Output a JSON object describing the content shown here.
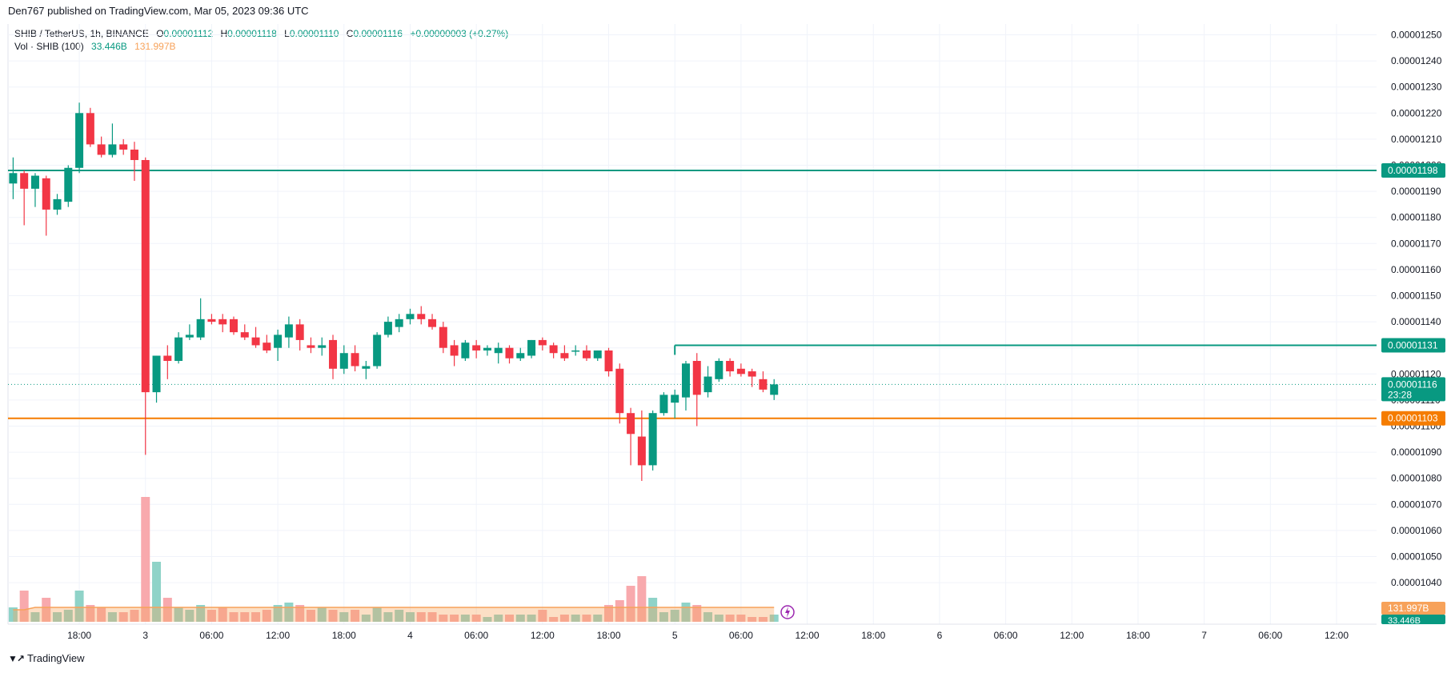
{
  "header": {
    "publisher_line": "Den767 published on TradingView.com, Mar 05, 2023 09:36 UTC"
  },
  "legend": {
    "symbol": "SHIB / TetherUS, 1h, BINANCE",
    "o_label": "O",
    "o_value": "0.00001112",
    "h_label": "H",
    "h_value": "0.00001118",
    "l_label": "L",
    "l_value": "0.00001110",
    "c_label": "C",
    "c_value": "0.00001116",
    "change": "+0.00000003 (+0.27%)",
    "vol_label": "Vol · SHIB (100)",
    "vol_value_1": "33.446B",
    "vol_value_2": "131.997B"
  },
  "footer": {
    "brand": "TradingView"
  },
  "colors": {
    "up": "#089981",
    "down": "#f23645",
    "vol_up": "#8fd3c8",
    "vol_down": "#f8a9ad",
    "vol_ma": "#f7a25a",
    "line_orange": "#f57c00",
    "line_green": "#089981",
    "grid": "#f0f3fa"
  },
  "chart_data": {
    "type": "candlestick",
    "ylim": [
      1.035e-05,
      1.25e-05
    ],
    "y_ticks": [
      "0.00001250",
      "0.00001240",
      "0.00001230",
      "0.00001220",
      "0.00001210",
      "0.00001200",
      "0.00001190",
      "0.00001180",
      "0.00001170",
      "0.00001160",
      "0.00001150",
      "0.00001140",
      "0.00001130",
      "0.00001120",
      "0.00001110",
      "0.00001100",
      "0.00001090",
      "0.00001080",
      "0.00001070",
      "0.00001060",
      "0.00001050",
      "0.00001040"
    ],
    "x_ticks": [
      {
        "idx": 6,
        "label": "18:00"
      },
      {
        "idx": 12,
        "label": "3"
      },
      {
        "idx": 18,
        "label": "06:00"
      },
      {
        "idx": 24,
        "label": "12:00"
      },
      {
        "idx": 30,
        "label": "18:00"
      },
      {
        "idx": 36,
        "label": "4"
      },
      {
        "idx": 42,
        "label": "06:00"
      },
      {
        "idx": 48,
        "label": "12:00"
      },
      {
        "idx": 54,
        "label": "18:00"
      },
      {
        "idx": 60,
        "label": "5"
      },
      {
        "idx": 66,
        "label": "06:00"
      },
      {
        "idx": 72,
        "label": "12:00"
      },
      {
        "idx": 78,
        "label": "18:00"
      },
      {
        "idx": 84,
        "label": "6"
      },
      {
        "idx": 90,
        "label": "06:00"
      },
      {
        "idx": 96,
        "label": "12:00"
      },
      {
        "idx": 102,
        "label": "18:00"
      },
      {
        "idx": 108,
        "label": "7"
      },
      {
        "idx": 114,
        "label": "06:00"
      },
      {
        "idx": 120,
        "label": "12:00"
      }
    ],
    "candles": [
      [
        1.193e-05,
        1.203e-05,
        1.187e-05,
        1.197e-05
      ],
      [
        1.197e-05,
        1.198e-05,
        1.177e-05,
        1.191e-05
      ],
      [
        1.191e-05,
        1.197e-05,
        1.184e-05,
        1.196e-05
      ],
      [
        1.195e-05,
        1.196e-05,
        1.173e-05,
        1.183e-05
      ],
      [
        1.183e-05,
        1.189e-05,
        1.181e-05,
        1.187e-05
      ],
      [
        1.186e-05,
        1.2e-05,
        1.184e-05,
        1.199e-05
      ],
      [
        1.199e-05,
        1.224e-05,
        1.197e-05,
        1.22e-05
      ],
      [
        1.22e-05,
        1.222e-05,
        1.207e-05,
        1.208e-05
      ],
      [
        1.208e-05,
        1.211e-05,
        1.203e-05,
        1.204e-05
      ],
      [
        1.204e-05,
        1.216e-05,
        1.203e-05,
        1.208e-05
      ],
      [
        1.208e-05,
        1.21e-05,
        1.204e-05,
        1.206e-05
      ],
      [
        1.206e-05,
        1.209e-05,
        1.194e-05,
        1.202e-05
      ],
      [
        1.202e-05,
        1.203e-05,
        1.089e-05,
        1.113e-05
      ],
      [
        1.113e-05,
        1.127e-05,
        1.109e-05,
        1.127e-05
      ],
      [
        1.127e-05,
        1.131e-05,
        1.118e-05,
        1.125e-05
      ],
      [
        1.125e-05,
        1.136e-05,
        1.124e-05,
        1.134e-05
      ],
      [
        1.134e-05,
        1.139e-05,
        1.133e-05,
        1.135e-05
      ],
      [
        1.134e-05,
        1.149e-05,
        1.133e-05,
        1.141e-05
      ],
      [
        1.141e-05,
        1.143e-05,
        1.139e-05,
        1.14e-05
      ],
      [
        1.141e-05,
        1.143e-05,
        1.136e-05,
        1.139e-05
      ],
      [
        1.141e-05,
        1.142e-05,
        1.135e-05,
        1.136e-05
      ],
      [
        1.136e-05,
        1.139e-05,
        1.133e-05,
        1.134e-05
      ],
      [
        1.134e-05,
        1.138e-05,
        1.13e-05,
        1.131e-05
      ],
      [
        1.132e-05,
        1.135e-05,
        1.128e-05,
        1.129e-05
      ],
      [
        1.13e-05,
        1.137e-05,
        1.125e-05,
        1.135e-05
      ],
      [
        1.134e-05,
        1.142e-05,
        1.13e-05,
        1.139e-05
      ],
      [
        1.139e-05,
        1.141e-05,
        1.129e-05,
        1.133e-05
      ],
      [
        1.131e-05,
        1.134e-05,
        1.128e-05,
        1.13e-05
      ],
      [
        1.13e-05,
        1.134e-05,
        1.127e-05,
        1.131e-05
      ],
      [
        1.133e-05,
        1.135e-05,
        1.118e-05,
        1.122e-05
      ],
      [
        1.122e-05,
        1.131e-05,
        1.12e-05,
        1.128e-05
      ],
      [
        1.128e-05,
        1.131e-05,
        1.121e-05,
        1.123e-05
      ],
      [
        1.122e-05,
        1.125e-05,
        1.118e-05,
        1.123e-05
      ],
      [
        1.123e-05,
        1.136e-05,
        1.122e-05,
        1.135e-05
      ],
      [
        1.135e-05,
        1.142e-05,
        1.134e-05,
        1.14e-05
      ],
      [
        1.138e-05,
        1.143e-05,
        1.136e-05,
        1.141e-05
      ],
      [
        1.141e-05,
        1.145e-05,
        1.139e-05,
        1.143e-05
      ],
      [
        1.143e-05,
        1.146e-05,
        1.139e-05,
        1.141e-05
      ],
      [
        1.141e-05,
        1.143e-05,
        1.137e-05,
        1.138e-05
      ],
      [
        1.138e-05,
        1.14e-05,
        1.128e-05,
        1.13e-05
      ],
      [
        1.131e-05,
        1.133e-05,
        1.123e-05,
        1.127e-05
      ],
      [
        1.126e-05,
        1.133e-05,
        1.125e-05,
        1.132e-05
      ],
      [
        1.131e-05,
        1.133e-05,
        1.126e-05,
        1.129e-05
      ],
      [
        1.129e-05,
        1.131e-05,
        1.127e-05,
        1.13e-05
      ],
      [
        1.128e-05,
        1.132e-05,
        1.124e-05,
        1.13e-05
      ],
      [
        1.13e-05,
        1.131e-05,
        1.124e-05,
        1.126e-05
      ],
      [
        1.126e-05,
        1.13e-05,
        1.125e-05,
        1.128e-05
      ],
      [
        1.127e-05,
        1.133e-05,
        1.126e-05,
        1.133e-05
      ],
      [
        1.133e-05,
        1.134e-05,
        1.129e-05,
        1.131e-05
      ],
      [
        1.131e-05,
        1.132e-05,
        1.126e-05,
        1.128e-05
      ],
      [
        1.128e-05,
        1.131e-05,
        1.125e-05,
        1.126e-05
      ],
      [
        1.129e-05,
        1.131e-05,
        1.127e-05,
        1.129e-05
      ],
      [
        1.129e-05,
        1.131e-05,
        1.125e-05,
        1.126e-05
      ],
      [
        1.126e-05,
        1.129e-05,
        1.125e-05,
        1.129e-05
      ],
      [
        1.129e-05,
        1.13e-05,
        1.119e-05,
        1.121e-05
      ],
      [
        1.122e-05,
        1.124e-05,
        1.101e-05,
        1.105e-05
      ],
      [
        1.105e-05,
        1.107e-05,
        1.085e-05,
        1.097e-05
      ],
      [
        1.096e-05,
        1.106e-05,
        1.079e-05,
        1.085e-05
      ],
      [
        1.085e-05,
        1.106e-05,
        1.083e-05,
        1.105e-05
      ],
      [
        1.105e-05,
        1.113e-05,
        1.104e-05,
        1.112e-05
      ],
      [
        1.109e-05,
        1.114e-05,
        1.103e-05,
        1.112e-05
      ],
      [
        1.111e-05,
        1.125e-05,
        1.106e-05,
        1.124e-05
      ],
      [
        1.125e-05,
        1.128e-05,
        1.1e-05,
        1.112e-05
      ],
      [
        1.113e-05,
        1.123e-05,
        1.111e-05,
        1.119e-05
      ],
      [
        1.118e-05,
        1.126e-05,
        1.117e-05,
        1.125e-05
      ],
      [
        1.125e-05,
        1.126e-05,
        1.119e-05,
        1.121e-05
      ],
      [
        1.122e-05,
        1.124e-05,
        1.119e-05,
        1.12e-05
      ],
      [
        1.121e-05,
        1.122e-05,
        1.115e-05,
        1.119e-05
      ],
      [
        1.118e-05,
        1.121e-05,
        1.113e-05,
        1.114e-05
      ],
      [
        1.112e-05,
        1.118e-05,
        1.11e-05,
        1.116e-05
      ]
    ],
    "volumes": [
      6,
      13,
      4,
      10,
      4,
      5,
      13,
      7,
      6,
      4,
      4,
      5,
      52,
      25,
      10,
      6,
      5,
      7,
      5,
      6,
      4,
      4,
      4,
      5,
      7,
      8,
      7,
      5,
      6,
      5,
      4,
      5,
      3,
      6,
      4,
      5,
      4,
      4,
      4,
      3,
      3,
      3,
      3,
      2,
      3,
      3,
      3,
      3,
      5,
      2,
      3,
      3,
      3,
      3,
      7,
      9,
      15,
      19,
      10,
      4,
      5,
      8,
      7,
      4,
      3,
      3,
      3,
      2,
      2,
      3
    ],
    "vol_ma": [
      5,
      5,
      6,
      6,
      6,
      6,
      6,
      6,
      6,
      6,
      6,
      6,
      6,
      6,
      6,
      6,
      6,
      6,
      6,
      6,
      6,
      6,
      6,
      6,
      6,
      6,
      6,
      6,
      6,
      6,
      6,
      6,
      6,
      6,
      6,
      6,
      6,
      6,
      6,
      6,
      6,
      6,
      6,
      6,
      6,
      6,
      6,
      6,
      6,
      6,
      6,
      6,
      6,
      6,
      6,
      6,
      6,
      6,
      6,
      6,
      6,
      6,
      6,
      6,
      6,
      6,
      6,
      6,
      6,
      6
    ],
    "hlines": [
      {
        "value": "0.00001198",
        "price": 1.198e-05,
        "color": "#089981",
        "start_idx": 0
      },
      {
        "value": "0.00001131",
        "price": 1.131e-05,
        "color": "#089981",
        "start_idx": 60
      },
      {
        "value": "0.00001103",
        "price": 1.103e-05,
        "color": "#f57c00",
        "start_idx": 0
      }
    ],
    "current_price": {
      "value": "0.00001116",
      "countdown": "23:28",
      "price": 1.116e-05
    },
    "volume_tags": {
      "ma": "131.997B",
      "vol": "33.446B"
    }
  }
}
